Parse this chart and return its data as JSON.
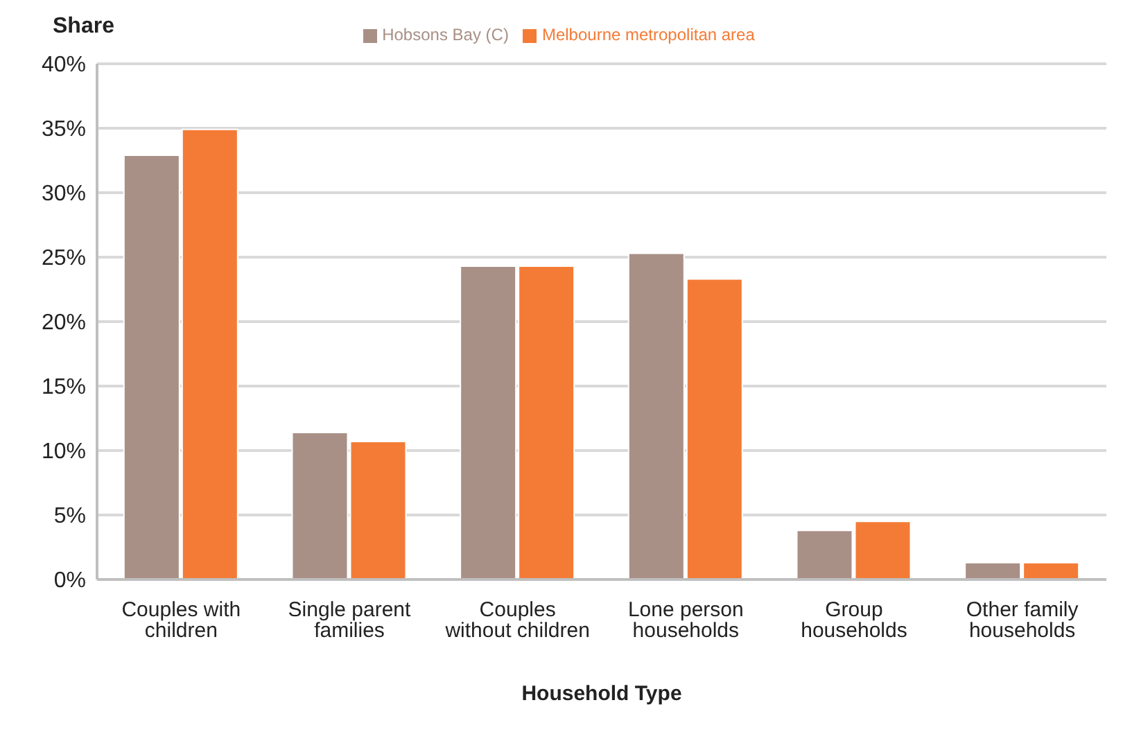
{
  "chart_data": {
    "type": "bar",
    "ylabel": "Share",
    "xlabel": "Household Type",
    "categories": [
      "Couples with children",
      "Single parent families",
      "Couples without children",
      "Lone person households",
      "Group households",
      "Other family households"
    ],
    "series": [
      {
        "name": "Hobsons Bay (C)",
        "color": "#a89086",
        "values": [
          32.9,
          11.4,
          24.3,
          25.3,
          3.8,
          1.3
        ]
      },
      {
        "name": "Melbourne metropolitan area",
        "color": "#f47b36",
        "values": [
          34.9,
          10.7,
          24.3,
          23.3,
          4.5,
          1.3
        ]
      }
    ],
    "ylim": [
      0,
      40
    ],
    "yticks": [
      {
        "value": 0,
        "label": "0%"
      },
      {
        "value": 5,
        "label": "5%"
      },
      {
        "value": 10,
        "label": "10%"
      },
      {
        "value": 15,
        "label": "15%"
      },
      {
        "value": 20,
        "label": "20%"
      },
      {
        "value": 25,
        "label": "25%"
      },
      {
        "value": 30,
        "label": "30%"
      },
      {
        "value": 35,
        "label": "35%"
      },
      {
        "value": 40,
        "label": "40%"
      }
    ],
    "grid": "y",
    "legend": "top"
  }
}
